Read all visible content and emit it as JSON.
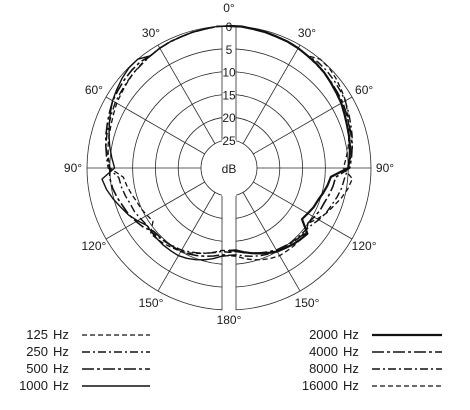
{
  "chart_data": {
    "type": "polar",
    "orientation": "0° at top, angles increase clockwise, both halves labelled 0–180°",
    "radial_axis": {
      "unit": "dB",
      "ticks": [
        0,
        5,
        10,
        15,
        20,
        25
      ],
      "range": [
        0,
        30
      ],
      "note": "0 dB at the outer ring, attenuation increases inward"
    },
    "angle_labels": [
      {
        "angle": 0,
        "text": "0°"
      },
      {
        "angle": 30,
        "text": "30°"
      },
      {
        "angle": 60,
        "text": "60°"
      },
      {
        "angle": 90,
        "text": "90°"
      },
      {
        "angle": 120,
        "text": "120°"
      },
      {
        "angle": 150,
        "text": "150°"
      },
      {
        "angle": 180,
        "text": "180°"
      },
      {
        "angle": -30,
        "text": "30°"
      },
      {
        "angle": -60,
        "text": "60°"
      },
      {
        "angle": -90,
        "text": "90°"
      },
      {
        "angle": -120,
        "text": "120°"
      },
      {
        "angle": -150,
        "text": "150°"
      }
    ],
    "grid": true,
    "legend_placement": "bottom",
    "left_half": {
      "angles": [
        0,
        5,
        10,
        15,
        20,
        25,
        30,
        35,
        40,
        45,
        50,
        55,
        60,
        65,
        70,
        75,
        80,
        85,
        90,
        95,
        100,
        105,
        110,
        115,
        120,
        125,
        130,
        135,
        140,
        145,
        150,
        155,
        160,
        165,
        170,
        175,
        180
      ],
      "series": [
        {
          "name": "125 Hz",
          "values_db": [
            0.0,
            0.0,
            0.2,
            0.3,
            0.5,
            0.6,
            0.8,
            1.1,
            1.3,
            1.6,
            2.0,
            2.4,
            2.7,
            3.2,
            3.6,
            3.9,
            4.2,
            4.6,
            5.0,
            5.5,
            6.0,
            6.6,
            7.2,
            7.5,
            8.0,
            8.4,
            8.7,
            9.0,
            9.3,
            9.7,
            10.0,
            10.6,
            11.2,
            11.8,
            12.4,
            13.0,
            13.0
          ]
        },
        {
          "name": "250 Hz",
          "values_db": [
            0.0,
            0.0,
            0.2,
            0.3,
            0.5,
            0.6,
            0.8,
            1.1,
            1.3,
            1.6,
            2.0,
            2.4,
            2.7,
            3.2,
            3.6,
            3.9,
            4.2,
            4.6,
            5.0,
            5.5,
            6.0,
            6.6,
            7.2,
            7.5,
            8.0,
            8.4,
            8.7,
            9.0,
            9.3,
            9.7,
            10.0,
            10.6,
            11.2,
            11.8,
            12.4,
            13.0,
            13.0
          ]
        },
        {
          "name": "500 Hz",
          "values_db": [
            0.0,
            0.0,
            0.2,
            0.3,
            0.5,
            0.6,
            0.8,
            1.1,
            1.3,
            1.6,
            2.0,
            2.4,
            2.7,
            3.2,
            3.6,
            3.9,
            4.2,
            4.6,
            5.0,
            5.5,
            6.0,
            6.6,
            7.2,
            7.5,
            8.0,
            8.4,
            8.7,
            9.0,
            9.3,
            9.7,
            10.0,
            10.6,
            11.2,
            11.8,
            12.4,
            13.0,
            13.0
          ]
        },
        {
          "name": "1000 Hz",
          "values_db": [
            0.0,
            0.0,
            0.2,
            0.3,
            0.5,
            0.6,
            0.8,
            1.1,
            1.3,
            1.6,
            2.0,
            2.4,
            2.7,
            3.2,
            3.6,
            3.9,
            4.2,
            4.6,
            5.0,
            5.5,
            6.0,
            6.6,
            7.2,
            7.5,
            8.0,
            8.4,
            8.7,
            9.0,
            9.3,
            9.7,
            10.0,
            10.6,
            11.2,
            11.8,
            12.4,
            13.0,
            13.0
          ]
        }
      ]
    },
    "right_half": {
      "angles": [
        0,
        5,
        10,
        15,
        20,
        25,
        30,
        35,
        40,
        45,
        50,
        55,
        60,
        65,
        70,
        75,
        80,
        85,
        90,
        95,
        100,
        105,
        110,
        115,
        120,
        125,
        130,
        135,
        140,
        145,
        150,
        155,
        160,
        165,
        170,
        175,
        180
      ],
      "series": [
        {
          "name": "2000 Hz",
          "values_db": [
            0.0,
            0.0,
            0.2,
            0.3,
            0.5,
            0.6,
            0.8,
            1.1,
            1.3,
            1.6,
            2.0,
            2.4,
            2.7,
            3.2,
            3.6,
            3.9,
            4.2,
            4.6,
            5.0,
            5.5,
            6.0,
            6.6,
            7.2,
            7.5,
            8.0,
            8.4,
            8.7,
            9.0,
            9.3,
            9.7,
            10.0,
            10.6,
            11.2,
            11.8,
            12.4,
            13.0,
            13.0
          ]
        },
        {
          "name": "4000 Hz",
          "values_db": [
            0.0,
            0.0,
            0.2,
            0.3,
            0.5,
            0.6,
            0.8,
            1.1,
            1.3,
            1.6,
            2.0,
            2.4,
            2.7,
            3.2,
            3.6,
            3.9,
            4.2,
            4.6,
            5.0,
            5.5,
            6.0,
            6.6,
            7.2,
            7.5,
            8.0,
            8.4,
            8.7,
            9.0,
            9.3,
            9.7,
            10.0,
            10.6,
            11.2,
            11.8,
            12.4,
            13.0,
            13.0
          ]
        },
        {
          "name": "8000 Hz",
          "values_db": [
            0.0,
            0.0,
            0.2,
            0.3,
            0.5,
            0.6,
            0.8,
            1.1,
            1.3,
            1.6,
            2.0,
            2.4,
            2.7,
            3.2,
            3.6,
            3.9,
            4.2,
            4.6,
            5.0,
            5.5,
            6.0,
            6.6,
            7.2,
            7.5,
            8.0,
            8.4,
            8.7,
            9.0,
            9.3,
            9.7,
            10.0,
            10.6,
            11.2,
            11.8,
            12.4,
            13.0,
            13.0
          ]
        },
        {
          "name": "16000 Hz",
          "values_db": [
            0.0,
            0.0,
            0.2,
            0.3,
            0.5,
            0.6,
            0.8,
            1.1,
            1.3,
            1.6,
            2.0,
            2.4,
            2.7,
            3.2,
            3.6,
            3.9,
            4.2,
            4.6,
            5.0,
            5.5,
            6.0,
            6.6,
            7.2,
            7.5,
            8.0,
            8.4,
            8.7,
            9.0,
            9.3,
            9.7,
            10.0,
            10.6,
            11.2,
            11.8,
            12.4,
            13.0,
            13.0
          ]
        }
      ]
    }
  },
  "legend": {
    "left": [
      {
        "label": "125",
        "unit": "Hz",
        "style": "dashed"
      },
      {
        "label": "250",
        "unit": "Hz",
        "style": "dash-dot"
      },
      {
        "label": "500",
        "unit": "Hz",
        "style": "long-dash-dot"
      },
      {
        "label": "1000",
        "unit": "Hz",
        "style": "solid"
      }
    ],
    "right": [
      {
        "label": "2000",
        "unit": "Hz",
        "style": "solid-thick"
      },
      {
        "label": "4000",
        "unit": "Hz",
        "style": "long-dash-dot"
      },
      {
        "label": "8000",
        "unit": "Hz",
        "style": "dash-dot"
      },
      {
        "label": "16000",
        "unit": "Hz",
        "style": "dashed"
      }
    ]
  },
  "center_label": "dB"
}
